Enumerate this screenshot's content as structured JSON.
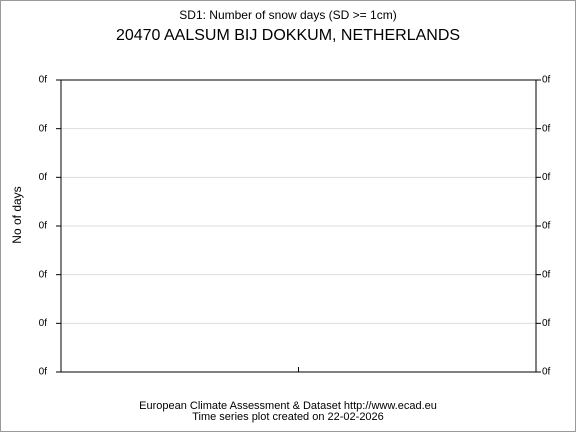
{
  "chart_data": {
    "type": "line",
    "title": "SD1: Number of snow days (SD >= 1cm)",
    "subtitle": "20470 AALSUM BIJ DOKKUM, NETHERLANDS",
    "y_label": "No of days",
    "footer": [
      "European Climate Assessment & Dataset  http://www.ecad.eu",
      "Time series plot created on 22-02-2026"
    ],
    "series": [],
    "ylim": [
      0,
      6
    ],
    "yticks": [
      {
        "value": 0,
        "label": "0f"
      },
      {
        "value": 1,
        "label": "0f"
      },
      {
        "value": 2,
        "label": "0f"
      },
      {
        "value": 3,
        "label": "0f"
      },
      {
        "value": 4,
        "label": "0f"
      },
      {
        "value": 5,
        "label": "0f"
      },
      {
        "value": 6,
        "label": "0f"
      }
    ],
    "y2lim": [
      0,
      6
    ],
    "y2ticks": [
      {
        "value": 0,
        "label": "0f"
      },
      {
        "value": 1,
        "label": "0f"
      },
      {
        "value": 2,
        "label": "0f"
      },
      {
        "value": 3,
        "label": "0f"
      },
      {
        "value": 4,
        "label": "0f"
      },
      {
        "value": 5,
        "label": "0f"
      },
      {
        "value": 6,
        "label": "0f"
      }
    ],
    "grid": true
  }
}
